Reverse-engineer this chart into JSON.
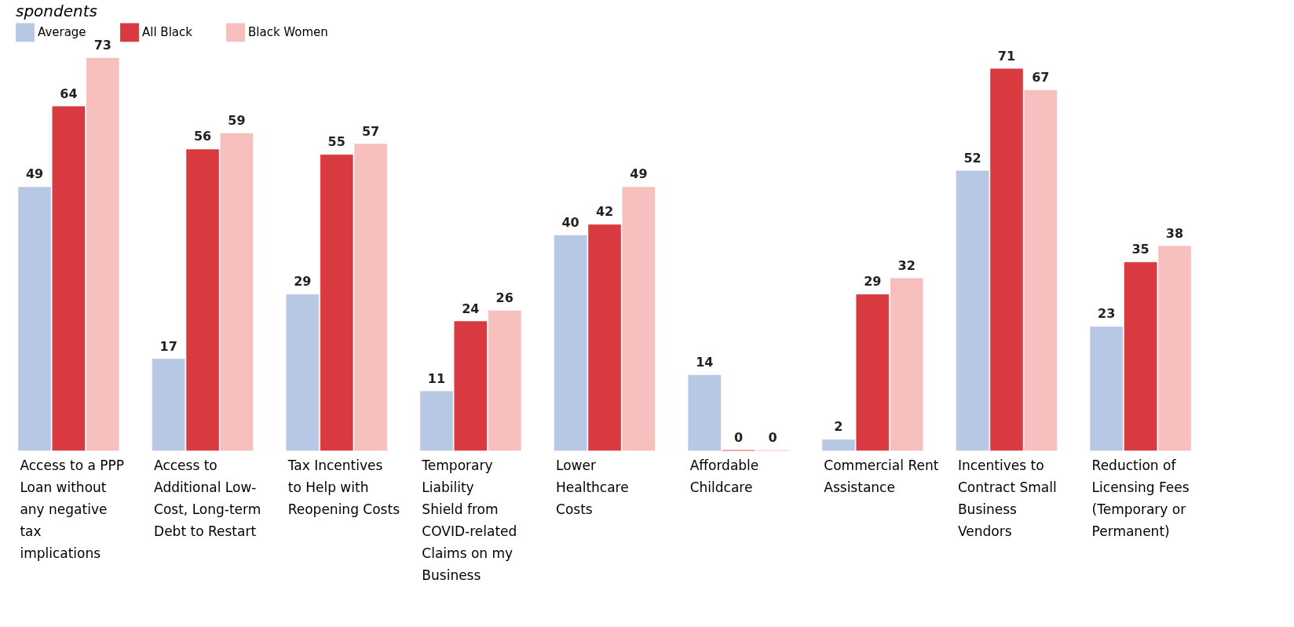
{
  "chart_data": {
    "type": "bar",
    "title": "spondents",
    "categories": [
      "Access to a PPP Loan without any negative tax implications",
      "Access to Additional Low-Cost, Long-term Debt to Restart",
      "Tax Incentives to Help with Reopening Costs",
      "Temporary Liability Shield from COVID-related Claims on my Business",
      "Lower Healthcare Costs",
      "Affordable Childcare",
      "Commercial Rent Assistance",
      "Incentives to Contract Small Business Vendors",
      "Reduction of Licensing Fees (Temporary or Permanent)"
    ],
    "series": [
      {
        "name": "Average",
        "color": "#b8c7e4",
        "values": [
          49,
          17,
          29,
          11,
          40,
          14,
          2,
          52,
          23
        ]
      },
      {
        "name": "All Black",
        "color": "#d93a40",
        "values": [
          64,
          56,
          55,
          24,
          42,
          0,
          29,
          71,
          35
        ]
      },
      {
        "name": "Black Women",
        "color": "#f7bfbd",
        "values": [
          73,
          59,
          57,
          26,
          49,
          0,
          32,
          67,
          38
        ]
      }
    ],
    "data_labels": true,
    "legend": "top"
  }
}
